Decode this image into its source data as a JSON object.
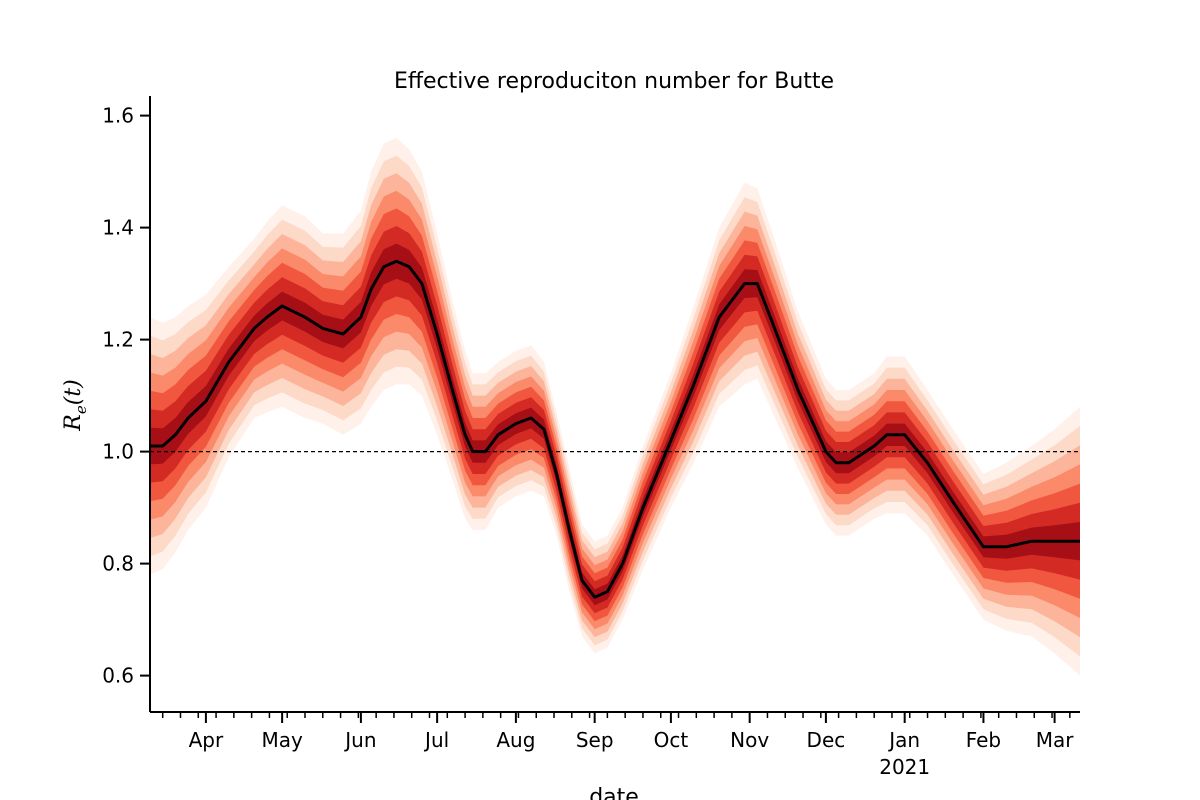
{
  "chart_data": {
    "type": "area",
    "title": "Effective reproduciton number for Butte",
    "xlabel": "date",
    "ylabel": {
      "base": "R",
      "subscript": "e",
      "argument": "(t)"
    },
    "x_range": [
      "2020-03-10",
      "2021-03-11"
    ],
    "ylim": [
      0.535,
      1.635
    ],
    "yticks": [
      0.6,
      0.8,
      1.0,
      1.2,
      1.4,
      1.6
    ],
    "ytick_labels": [
      "0.6",
      "0.8",
      "1.0",
      "1.2",
      "1.4",
      "1.6"
    ],
    "xticks": [
      {
        "date": "2020-04-01",
        "label": "Apr"
      },
      {
        "date": "2020-05-01",
        "label": "May"
      },
      {
        "date": "2020-06-01",
        "label": "Jun"
      },
      {
        "date": "2020-07-01",
        "label": "Jul"
      },
      {
        "date": "2020-08-01",
        "label": "Aug"
      },
      {
        "date": "2020-09-01",
        "label": "Sep"
      },
      {
        "date": "2020-10-01",
        "label": "Oct"
      },
      {
        "date": "2020-11-01",
        "label": "Nov"
      },
      {
        "date": "2020-12-01",
        "label": "Dec"
      },
      {
        "date": "2021-01-01",
        "label": "Jan",
        "sublabel": "2021"
      },
      {
        "date": "2021-02-01",
        "label": "Feb"
      },
      {
        "date": "2021-03-01",
        "label": "Mar"
      }
    ],
    "reference_line": {
      "y": 1.0,
      "style": "dashed",
      "color": "#000000"
    },
    "median_color": "#000000",
    "band_colors": [
      "#fff0ea",
      "#fdd9c8",
      "#fcb59b",
      "#fb8a6a",
      "#f1573f",
      "#d42a24",
      "#a50f15"
    ],
    "series": [
      {
        "x": [
          "2020-03-10",
          "2020-03-15",
          "2020-03-20",
          "2020-03-25",
          "2020-04-01",
          "2020-04-10",
          "2020-04-20",
          "2020-04-25",
          "2020-05-01",
          "2020-05-10",
          "2020-05-17",
          "2020-05-25",
          "2020-06-01",
          "2020-06-05",
          "2020-06-10",
          "2020-06-15",
          "2020-06-20",
          "2020-06-25",
          "2020-07-01",
          "2020-07-07",
          "2020-07-12",
          "2020-07-15",
          "2020-07-20",
          "2020-07-25",
          "2020-08-01",
          "2020-08-07",
          "2020-08-12",
          "2020-08-17",
          "2020-08-22",
          "2020-08-27",
          "2020-09-01",
          "2020-09-06",
          "2020-09-12",
          "2020-09-20",
          "2020-10-01",
          "2020-10-10",
          "2020-10-20",
          "2020-10-25",
          "2020-10-30",
          "2020-11-04",
          "2020-11-10",
          "2020-11-20",
          "2020-12-01",
          "2020-12-05",
          "2020-12-10",
          "2020-12-20",
          "2020-12-25",
          "2021-01-01",
          "2021-01-10",
          "2021-01-20",
          "2021-02-01",
          "2021-02-10",
          "2021-02-20",
          "2021-03-01",
          "2021-03-11"
        ],
        "median": [
          1.01,
          1.01,
          1.03,
          1.06,
          1.09,
          1.16,
          1.22,
          1.24,
          1.26,
          1.24,
          1.22,
          1.21,
          1.24,
          1.29,
          1.33,
          1.34,
          1.33,
          1.3,
          1.21,
          1.11,
          1.03,
          1.0,
          1.0,
          1.03,
          1.05,
          1.06,
          1.04,
          0.96,
          0.86,
          0.77,
          0.74,
          0.75,
          0.8,
          0.9,
          1.02,
          1.12,
          1.24,
          1.27,
          1.3,
          1.3,
          1.23,
          1.11,
          1.0,
          0.98,
          0.98,
          1.01,
          1.03,
          1.03,
          0.98,
          0.91,
          0.83,
          0.83,
          0.84,
          0.84,
          0.84
        ],
        "spread": [
          0.23,
          0.22,
          0.21,
          0.2,
          0.19,
          0.17,
          0.16,
          0.17,
          0.18,
          0.18,
          0.17,
          0.18,
          0.19,
          0.21,
          0.22,
          0.22,
          0.21,
          0.2,
          0.18,
          0.16,
          0.15,
          0.14,
          0.14,
          0.13,
          0.13,
          0.13,
          0.12,
          0.11,
          0.11,
          0.1,
          0.1,
          0.1,
          0.1,
          0.11,
          0.12,
          0.14,
          0.16,
          0.17,
          0.18,
          0.17,
          0.16,
          0.14,
          0.13,
          0.13,
          0.13,
          0.13,
          0.14,
          0.14,
          0.13,
          0.13,
          0.13,
          0.15,
          0.17,
          0.2,
          0.24
        ]
      }
    ]
  }
}
